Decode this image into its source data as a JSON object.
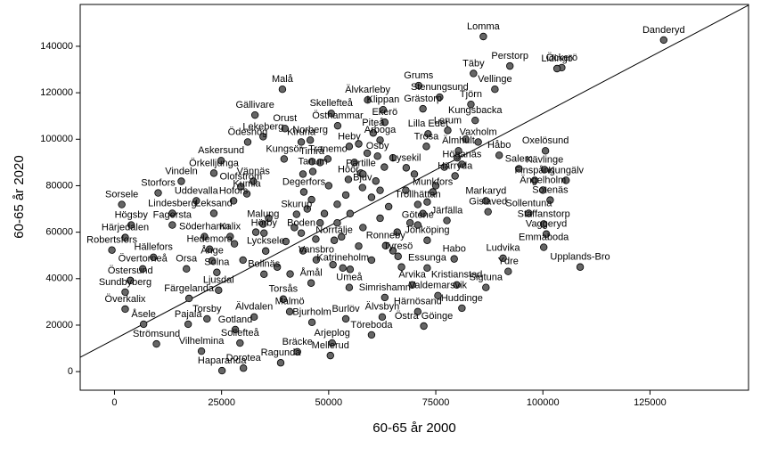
{
  "chart_data": {
    "type": "scatter",
    "x_label": "60-65 år 2000",
    "y_label": "60-65 år 2020",
    "xlim": [
      -8000,
      148000
    ],
    "ylim": [
      -8000,
      158000
    ],
    "xticks": [
      0,
      25000,
      50000,
      75000,
      100000,
      125000
    ],
    "yticks": [
      0,
      20000,
      40000,
      60000,
      80000,
      100000,
      120000,
      140000
    ],
    "color": "#666666",
    "fit_line": {
      "x": [
        -8000,
        148000
      ],
      "y": [
        6150,
        157700
      ]
    },
    "labels": [
      "Lomma",
      "Danderyd",
      "Perstorp",
      "Öckerö",
      "Lidingö",
      "Täby",
      "Grums",
      "Vellinge",
      "Malå",
      "Stenungsund",
      "Älvkarleby",
      "Klippan",
      "Tjörn",
      "Gällivare",
      "Skellefteå",
      "Grästorp",
      "Östhammar",
      "Orust",
      "Ekerö",
      "Kungsbacka",
      "Lekeberg",
      "Norberg",
      "Piteå",
      "Lilla Edet",
      "Lerum",
      "Vaxholm",
      "Ödeshög",
      "Kiruna",
      "Heby",
      "Arboga",
      "Trosa",
      "Älmhult",
      "Håbo",
      "Oxelösund",
      "Osby",
      "Kungsör",
      "Tranemo",
      "Timrå",
      "Askersund",
      "Lysekil",
      "Höganäs",
      "Salem",
      "Kävlinge",
      "Tanum",
      "Partille",
      "Örkelljunga",
      "Härryda",
      "Finspång",
      "Kungälv",
      "Vindeln",
      "Olofström",
      "Höör",
      "Bjuv",
      "Munkfors",
      "Ängelholm",
      "Storfors",
      "Vännäs",
      "Kumla",
      "Degerfors",
      "Sotenäs",
      "Markaryd",
      "Uddevalla",
      "Hofors",
      "Sorsele",
      "Trollhättan",
      "Sollentuna",
      "Lindesberg",
      "Leksand",
      "Skurup",
      "Järfälla",
      "Gislaved",
      "Staffanstorp",
      "Högsby",
      "Fagersta",
      "Malung",
      "Götene",
      "Härjedalen",
      "Söderhamn",
      "Kalix",
      "Hörby",
      "Boden",
      "Vaggeryd",
      "Jönköping",
      "Robertsfors",
      "Hedemora",
      "Norrtälje",
      "Ronneby",
      "Emmaboda",
      "Ludvika",
      "Hällefors",
      "Ånge",
      "Lycksele",
      "Tyresö",
      "Habo",
      "Övertorneå",
      "Orsa",
      "Vansbro",
      "Katrineholm",
      "Essunga",
      "Ydre",
      "Upplands-Bro",
      "Bollnäs",
      "Solna",
      "Östersund",
      "Åmål",
      "Arvika",
      "Kristianstad",
      "Sigtuna",
      "Umeå",
      "Sundbyberg",
      "Ljusdal",
      "Torsås",
      "Färgelanda",
      "Simrishamn",
      "Valdemarsvik",
      "Överkalix",
      "Huddinge",
      "Härnösand",
      "Malmö",
      "Älvdalen",
      "Burlöv",
      "Älvsbyn",
      "Torsby",
      "Bjurholm",
      "Östra Göinge",
      "Åsele",
      "Pajala",
      "Gotland",
      "Töreboda",
      "Strömsund",
      "Sollefteå",
      "Arjeplog",
      "Vilhelmina",
      "Bräcke",
      "Mellerud",
      "Ragunda",
      "Dorotea",
      "Haparanda",
      null,
      null,
      null,
      null,
      null,
      null,
      null,
      null,
      null,
      null,
      null,
      null,
      null,
      null,
      null,
      null,
      null,
      null,
      null,
      null,
      null,
      null,
      null,
      null,
      null,
      null,
      null,
      null,
      null,
      null,
      null,
      null,
      null,
      null,
      null,
      null,
      null,
      null,
      null,
      null,
      null,
      null,
      null,
      null,
      null,
      null,
      null,
      null,
      null,
      null
    ],
    "x": [
      86100,
      128200,
      92300,
      104400,
      103300,
      83800,
      71000,
      88800,
      39200,
      75900,
      59100,
      62700,
      83200,
      32800,
      50600,
      72000,
      52100,
      39800,
      63100,
      84200,
      34700,
      45700,
      60400,
      73200,
      77800,
      84900,
      31100,
      43600,
      54800,
      62000,
      72800,
      80300,
      89800,
      100600,
      61400,
      39600,
      49800,
      46100,
      24900,
      68100,
      81100,
      94400,
      100400,
      46300,
      57500,
      23200,
      79500,
      98100,
      105400,
      15600,
      29500,
      54600,
      57900,
      74300,
      100000,
      10200,
      32400,
      30900,
      44200,
      101700,
      86700,
      19100,
      27800,
      1700,
      70800,
      96700,
      13500,
      23200,
      42500,
      77600,
      87200,
      100200,
      3900,
      13500,
      34700,
      70800,
      2500,
      21000,
      27000,
      34900,
      43600,
      100800,
      73000,
      -600,
      22200,
      51300,
      63300,
      100200,
      90700,
      9100,
      22800,
      35300,
      66200,
      79300,
      6600,
      16800,
      47100,
      53300,
      73000,
      91900,
      108700,
      34900,
      23900,
      3700,
      45900,
      69500,
      79900,
      86700,
      54800,
      2500,
      24300,
      39400,
      17400,
      63100,
      75500,
      2500,
      81100,
      70800,
      40900,
      32600,
      54000,
      62500,
      21600,
      46100,
      72200,
      6800,
      17200,
      28200,
      60000,
      9800,
      29300,
      50800,
      20300,
      42700,
      50400,
      38800,
      30100,
      25100,
      45000,
      48000,
      52000,
      55000,
      58000,
      60000,
      62000,
      64000,
      66000,
      68000,
      53000,
      57000,
      50000,
      47000,
      44000,
      61000,
      63000,
      70000,
      72000,
      75000,
      56000,
      59000,
      54000,
      49000,
      46000,
      42000,
      40000,
      38000,
      41000,
      36000,
      33000,
      30000,
      28000,
      65000,
      67000,
      60000,
      55000,
      51000,
      58000,
      62000,
      69000,
      73000,
      77000,
      80000,
      82000,
      57000,
      48000,
      44000,
      52000,
      65000
    ],
    "values": [
      144200,
      142700,
      131500,
      130800,
      130400,
      128300,
      123100,
      121500,
      121500,
      118100,
      116900,
      112700,
      115000,
      110400,
      111100,
      113100,
      105800,
      104600,
      107300,
      108100,
      101100,
      99600,
      102700,
      102300,
      103800,
      98800,
      98800,
      98800,
      96900,
      99600,
      96900,
      95000,
      93100,
      95000,
      92700,
      91500,
      91500,
      90400,
      90800,
      87700,
      89200,
      87300,
      86900,
      86100,
      85400,
      85400,
      84200,
      82300,
      82300,
      81900,
      79600,
      82700,
      79200,
      77300,
      78100,
      76900,
      81900,
      76500,
      77300,
      73800,
      73500,
      73500,
      73500,
      71900,
      71900,
      68100,
      68100,
      68100,
      67700,
      65000,
      68800,
      63500,
      63100,
      63100,
      63500,
      63100,
      57700,
      58100,
      58100,
      59600,
      59600,
      59200,
      56500,
      52300,
      52700,
      56500,
      54200,
      53500,
      48800,
      49200,
      47700,
      51900,
      49600,
      48500,
      44200,
      44200,
      48100,
      44600,
      44600,
      43100,
      45000,
      41900,
      42700,
      39200,
      38100,
      37300,
      37300,
      36200,
      36200,
      34200,
      35000,
      31200,
      31500,
      31900,
      32700,
      26900,
      27300,
      25800,
      25800,
      23500,
      22700,
      23500,
      22700,
      21200,
      19600,
      20400,
      20400,
      18100,
      15800,
      11900,
      12300,
      12300,
      8800,
      8500,
      6900,
      3800,
      1500,
      400,
      70000,
      64000,
      72000,
      68000,
      62000,
      75000,
      66000,
      71000,
      60000,
      78000,
      58000,
      54000,
      80000,
      57000,
      52000,
      82000,
      88000,
      85000,
      68000,
      80000,
      90000,
      94000,
      76000,
      68000,
      74000,
      62000,
      56000,
      45000,
      42000,
      66000,
      60000,
      48000,
      55000,
      52000,
      45000,
      48000,
      44000,
      46000,
      85000,
      78000,
      64000,
      73000,
      88000,
      92000,
      100000,
      98000,
      90000,
      85000,
      64000,
      92000
    ]
  }
}
